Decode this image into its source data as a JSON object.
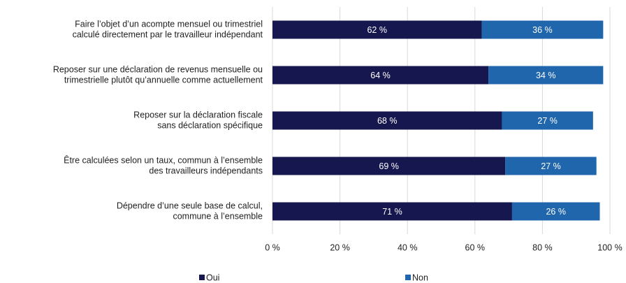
{
  "chart_data": {
    "type": "stacked_barh",
    "categories": [
      [
        "Faire l’objet d’un acompte mensuel ou trimestriel",
        "calculé directement par le travailleur indépendant"
      ],
      [
        "Reposer sur une déclaration de revenus mensuelle ou",
        "trimestrielle plutôt qu’annuelle comme actuellement"
      ],
      [
        "Reposer sur la déclaration fiscale",
        "sans déclaration spécifique"
      ],
      [
        "Être calculées selon un taux, commun à l’ensemble",
        "des travailleurs indépendants"
      ],
      [
        "Dépendre d’une seule base de calcul,",
        "commune à l’ensemble"
      ]
    ],
    "series": [
      {
        "name": "Oui",
        "color": "#17174f",
        "values": [
          62,
          64,
          68,
          69,
          71
        ],
        "value_labels": [
          "62 %",
          "64 %",
          "68 %",
          "69 %",
          "71 %"
        ]
      },
      {
        "name": "Non",
        "color": "#1f66ad",
        "values": [
          36,
          34,
          27,
          27,
          26
        ],
        "value_labels": [
          "36 %",
          "34 %",
          "27 %",
          "27 %",
          "26 %"
        ]
      }
    ],
    "xlim": [
      0,
      100
    ],
    "xticks": [
      {
        "value": 0,
        "label": "0 %"
      },
      {
        "value": 20,
        "label": "20 %"
      },
      {
        "value": 40,
        "label": "40 %"
      },
      {
        "value": 60,
        "label": "60 %"
      },
      {
        "value": 80,
        "label": "80 %"
      },
      {
        "value": 100,
        "label": "100 %"
      }
    ],
    "grid": true,
    "legend": "bottom"
  }
}
